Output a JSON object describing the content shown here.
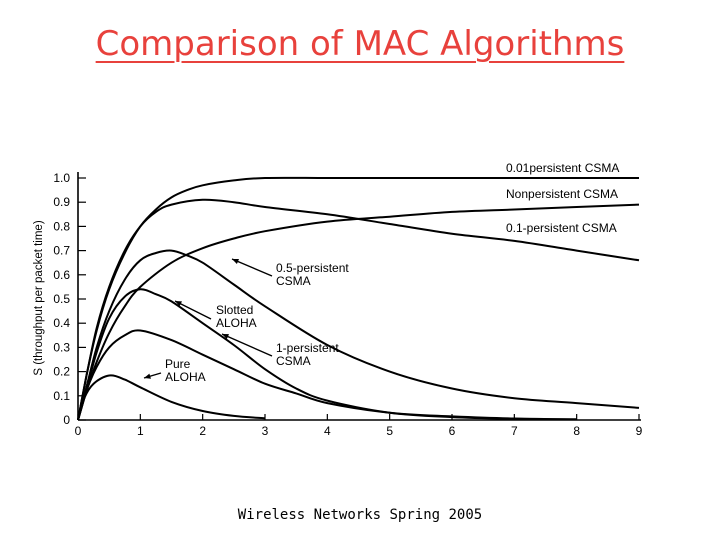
{
  "slide": {
    "title": "Comparison of MAC Algorithms",
    "footer": "Wireless Networks Spring 2005"
  },
  "chart_data": {
    "type": "line",
    "title": "",
    "xlabel": "",
    "ylabel": "S (throughput per packet time)",
    "xlim": [
      0,
      9
    ],
    "ylim": [
      0,
      1.0
    ],
    "x_ticks": [
      "0",
      "1",
      "2",
      "3",
      "4",
      "5",
      "6",
      "7",
      "8",
      "9"
    ],
    "y_ticks": [
      "0",
      "0.1",
      "0.2",
      "0.3",
      "0.4",
      "0.5",
      "0.6",
      "0.7",
      "0.8",
      "0.9",
      "1.0"
    ],
    "grid": false,
    "series": [
      {
        "name": "0.01persistent CSMA",
        "label_lines": [
          "0.01persistent CSMA"
        ],
        "x": [
          0,
          0.15,
          0.3,
          0.5,
          0.75,
          1,
          1.25,
          1.5,
          1.75,
          2,
          2.5,
          3,
          4,
          5,
          6,
          7,
          8,
          9
        ],
        "y": [
          0,
          0.2,
          0.37,
          0.54,
          0.69,
          0.8,
          0.87,
          0.92,
          0.95,
          0.97,
          0.99,
          1.0,
          1.0,
          1.0,
          1.0,
          1.0,
          1.0,
          1.0
        ]
      },
      {
        "name": "Nonpersistent CSMA",
        "label_lines": [
          "Nonpersistent CSMA"
        ],
        "x": [
          0,
          0.15,
          0.3,
          0.5,
          0.75,
          1,
          1.5,
          2,
          2.5,
          3,
          4,
          5,
          6,
          7,
          8,
          9
        ],
        "y": [
          0,
          0.13,
          0.24,
          0.36,
          0.47,
          0.55,
          0.65,
          0.71,
          0.75,
          0.78,
          0.82,
          0.84,
          0.86,
          0.87,
          0.88,
          0.89
        ]
      },
      {
        "name": "0.1-persistent CSMA",
        "label_lines": [
          "0.1-persistent CSMA"
        ],
        "x": [
          0,
          0.15,
          0.3,
          0.5,
          0.75,
          1,
          1.25,
          1.5,
          2,
          2.5,
          3,
          4,
          5,
          6,
          7,
          8,
          9
        ],
        "y": [
          0,
          0.2,
          0.38,
          0.55,
          0.7,
          0.8,
          0.86,
          0.89,
          0.91,
          0.9,
          0.88,
          0.85,
          0.81,
          0.77,
          0.74,
          0.7,
          0.66
        ]
      },
      {
        "name": "0.5-persistent CSMA",
        "label_lines": [
          "0.5-persistent",
          "CSMA"
        ],
        "x": [
          0,
          0.15,
          0.3,
          0.5,
          0.75,
          1,
          1.25,
          1.5,
          1.75,
          2,
          2.5,
          3,
          4,
          5,
          6,
          7,
          8,
          9
        ],
        "y": [
          0,
          0.15,
          0.3,
          0.45,
          0.58,
          0.66,
          0.69,
          0.7,
          0.68,
          0.65,
          0.56,
          0.47,
          0.31,
          0.2,
          0.13,
          0.09,
          0.07,
          0.05
        ]
      },
      {
        "name": "Slotted ALOHA",
        "label_lines": [
          "Slotted",
          "ALOHA"
        ],
        "x": [
          0,
          0.15,
          0.3,
          0.5,
          0.75,
          1,
          1.5,
          2,
          2.5,
          3,
          3.5,
          4,
          5,
          6,
          7,
          8
        ],
        "y": [
          0,
          0.13,
          0.22,
          0.3,
          0.35,
          0.37,
          0.33,
          0.27,
          0.21,
          0.15,
          0.11,
          0.07,
          0.03,
          0.015,
          0.006,
          0.003
        ]
      },
      {
        "name": "1-persistent CSMA",
        "label_lines": [
          "1-persistent",
          "CSMA"
        ],
        "x": [
          0,
          0.15,
          0.3,
          0.5,
          0.75,
          1,
          1.25,
          1.5,
          2,
          2.5,
          3,
          3.5,
          4,
          5,
          6,
          7,
          8
        ],
        "y": [
          0,
          0.14,
          0.28,
          0.42,
          0.51,
          0.54,
          0.52,
          0.49,
          0.4,
          0.31,
          0.21,
          0.13,
          0.08,
          0.03,
          0.012,
          0.005,
          0.002
        ]
      },
      {
        "name": "Pure ALOHA",
        "label_lines": [
          "Pure",
          "ALOHA"
        ],
        "x": [
          0,
          0.1,
          0.25,
          0.5,
          0.75,
          1,
          1.5,
          2,
          2.5,
          3
        ],
        "y": [
          0,
          0.09,
          0.15,
          0.184,
          0.167,
          0.135,
          0.075,
          0.037,
          0.017,
          0.007
        ]
      }
    ]
  }
}
